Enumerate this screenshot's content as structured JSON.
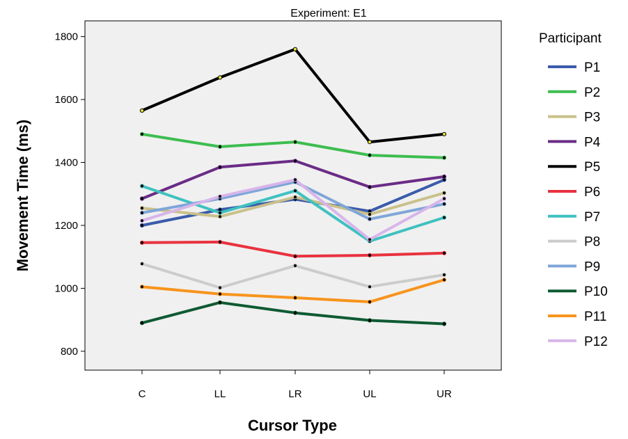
{
  "chart_data": {
    "type": "line",
    "title": "Experiment: E1",
    "xlabel": "Cursor Type",
    "ylabel": "Movement Time (ms)",
    "categories": [
      "C",
      "LL",
      "LR",
      "UL",
      "UR"
    ],
    "ylim": [
      740,
      1850
    ],
    "yticks": [
      800,
      1000,
      1200,
      1400,
      1600,
      1800
    ],
    "grid": false,
    "legend": {
      "title": "Participant",
      "placement": "right"
    },
    "series": [
      {
        "name": "P1",
        "color": "#3a5bab",
        "values": [
          1200,
          1250,
          1283,
          1245,
          1345
        ]
      },
      {
        "name": "P2",
        "color": "#3dbd4f",
        "values": [
          1490,
          1450,
          1465,
          1423,
          1415
        ]
      },
      {
        "name": "P3",
        "color": "#c9c18b",
        "values": [
          1255,
          1228,
          1290,
          1235,
          1303
        ]
      },
      {
        "name": "P4",
        "color": "#6a2c86",
        "values": [
          1285,
          1385,
          1405,
          1322,
          1355
        ]
      },
      {
        "name": "P5",
        "color": "#000000",
        "values": [
          1565,
          1670,
          1760,
          1465,
          1490
        ]
      },
      {
        "name": "P6",
        "color": "#e8323f",
        "values": [
          1145,
          1147,
          1102,
          1105,
          1112
        ]
      },
      {
        "name": "P7",
        "color": "#3fc1c0",
        "values": [
          1325,
          1240,
          1310,
          1150,
          1225
        ]
      },
      {
        "name": "P8",
        "color": "#cccccc",
        "values": [
          1078,
          1002,
          1072,
          1005,
          1043
        ]
      },
      {
        "name": "P9",
        "color": "#7fa6d8",
        "values": [
          1240,
          1285,
          1338,
          1220,
          1268
        ]
      },
      {
        "name": "P10",
        "color": "#0e5a33",
        "values": [
          890,
          955,
          922,
          898,
          887
        ]
      },
      {
        "name": "P11",
        "color": "#f7941d",
        "values": [
          1005,
          982,
          970,
          957,
          1027
        ]
      },
      {
        "name": "P12",
        "color": "#d7b5ea",
        "values": [
          1215,
          1292,
          1345,
          1155,
          1285
        ]
      }
    ],
    "marker_colors": {
      "default": "#000000",
      "P5": "#e8e23a"
    }
  }
}
